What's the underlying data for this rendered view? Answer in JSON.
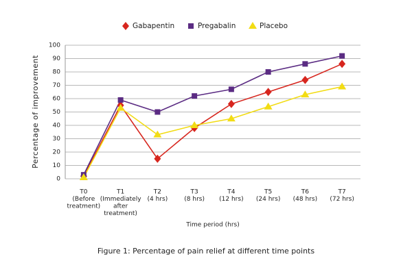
{
  "chart_data": {
    "type": "line",
    "categories": [
      [
        "T0",
        "(Before",
        "treatment)"
      ],
      [
        "T1",
        "(Immediately",
        "after",
        "treatment)"
      ],
      [
        "T2",
        "(4 hrs)"
      ],
      [
        "T3",
        "(8 hrs)"
      ],
      [
        "T4",
        "(12 hrs)"
      ],
      [
        "T5",
        "(24 hrs)"
      ],
      [
        "T6",
        "(48 hrs)"
      ],
      [
        "T7",
        "(72 hrs)"
      ]
    ],
    "series": [
      {
        "name": "Gabapentin",
        "color": "#d7261e",
        "marker": "diamond",
        "values": [
          2,
          55,
          15,
          38,
          56,
          65,
          74,
          86
        ]
      },
      {
        "name": "Pregabalin",
        "color": "#5b2c83",
        "marker": "square",
        "values": [
          3,
          59,
          50,
          62,
          67,
          80,
          86,
          92
        ]
      },
      {
        "name": "Placebo",
        "color": "#f2dc14",
        "marker": "triangle",
        "values": [
          1,
          53,
          33,
          40,
          45,
          54,
          63,
          69
        ]
      }
    ],
    "ylim": [
      0,
      100
    ],
    "yticks": [
      0,
      10,
      20,
      30,
      40,
      50,
      60,
      70,
      80,
      90,
      100
    ],
    "grid": true,
    "y_label": "Percentage of improvement",
    "x_label": "Time period (hrs)",
    "caption": "Figure 1: Percentage of pain relief at different time points",
    "legend": "top"
  }
}
